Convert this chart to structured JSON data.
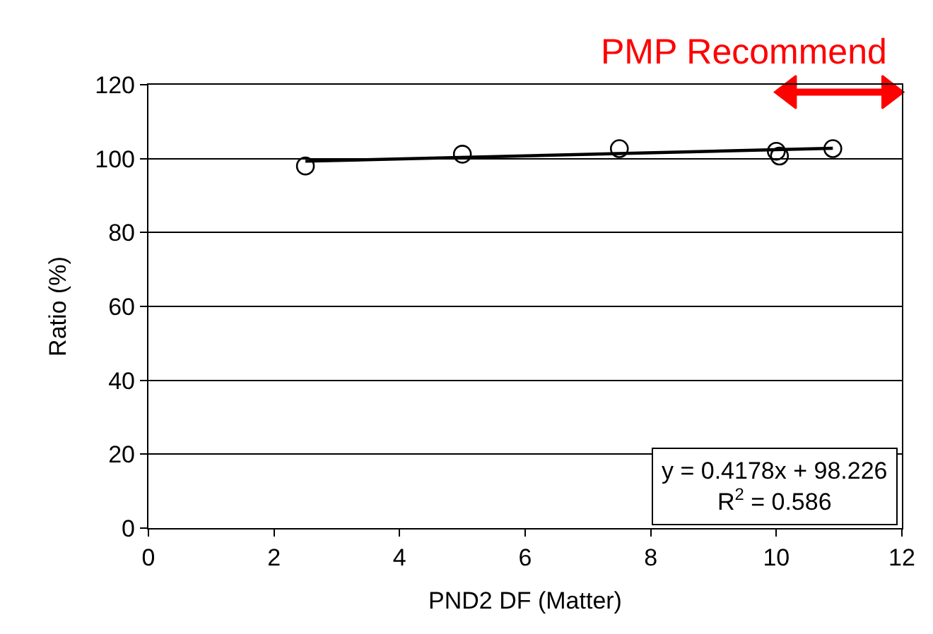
{
  "chart_data": {
    "type": "scatter",
    "xlabel": "PND2 DF (Matter)",
    "ylabel": "Ratio (%)",
    "annotations": [
      "y = 0.4178x + 98.226",
      "R$^{2}$ = 0.586"
    ],
    "series": [
      {
        "color": "#000000",
        "marker": "circle",
        "x": [
          2.5,
          5,
          7.5,
          10,
          10.05,
          10.9
        ],
        "values": [
          98,
          101.2,
          102.7,
          102,
          100.7,
          102.7
        ]
      },
      {
        "type": "line",
        "color": "#000000",
        "marker": "none",
        "x": [
          2.5,
          10.9
        ],
        "values": [
          99.3,
          102.8
        ]
      },
      {
        "type": "line",
        "name": "PMP Recommend",
        "color": "#ff0000",
        "marker": "triangle",
        "x": [
          10.2,
          11.8
        ],
        "values": [
          118,
          118
        ]
      }
    ],
    "xlim": [
      0,
      12
    ],
    "xticks": [
      0,
      2,
      4,
      6,
      8,
      10,
      12
    ],
    "ylim": [
      0,
      120
    ],
    "yticks": [
      0,
      20,
      40,
      60,
      80,
      100,
      120
    ],
    "grid": "y",
    "legend": false
  }
}
